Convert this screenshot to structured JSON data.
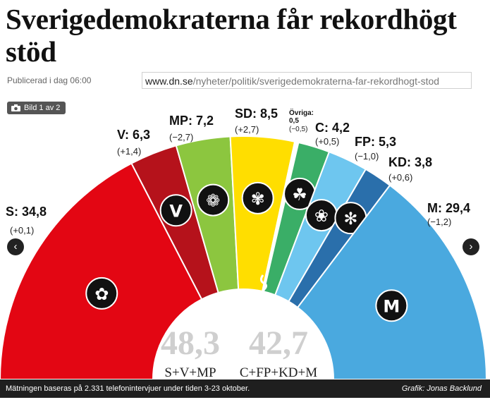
{
  "article": {
    "headline": "Sverigedemokraterna får rekordhögt stöd",
    "published": "Publicerad i dag 06:00",
    "url_domain": "www.dn.se",
    "url_path": "/nyheter/politik/sverigedemokraterna-far-rekordhogt-stod"
  },
  "gallery": {
    "badge": "Bild 1 av 2",
    "prev": "‹",
    "next": "›"
  },
  "chart_data": {
    "type": "pie",
    "title": "Sverigedemokraterna får rekordhögt stöd",
    "unit": "percent",
    "parties": [
      {
        "name": "S",
        "value": 34.8,
        "display": "34,8",
        "change": "(+0,1)",
        "color": "#e30613",
        "icon": "rose-icon"
      },
      {
        "name": "V",
        "value": 6.3,
        "display": "6,3",
        "change": "(+1,4)",
        "color": "#b5121b",
        "icon": "v-icon"
      },
      {
        "name": "MP",
        "value": 7.2,
        "display": "7,2",
        "change": "(−2,7)",
        "color": "#8cc63f",
        "icon": "dandelion-icon"
      },
      {
        "name": "SD",
        "value": 8.5,
        "display": "8,5",
        "change": "(+2,7)",
        "color": "#ffde00",
        "icon": "flower-icon"
      },
      {
        "name": "Övriga:",
        "value": 0.5,
        "display": "0,5",
        "change": "(−0,5)",
        "color": "#ffffff",
        "icon": ""
      },
      {
        "name": "C",
        "value": 4.2,
        "display": "4,2",
        "change": "(+0,5)",
        "color": "#3aae67",
        "icon": "clover-icon"
      },
      {
        "name": "FP",
        "value": 5.3,
        "display": "5,3",
        "change": "(−1,0)",
        "color": "#6ec6ef",
        "icon": "cornflower-icon"
      },
      {
        "name": "KD",
        "value": 3.8,
        "display": "3,8",
        "change": "(+0,6)",
        "color": "#2a6fab",
        "icon": "kd-flower-icon"
      },
      {
        "name": "M",
        "value": 29.4,
        "display": "29,4",
        "change": "(−1,2)",
        "color": "#4aa9df",
        "icon": "m-icon"
      }
    ],
    "blocs": [
      {
        "label": "S+V+MP",
        "value": "48,3"
      },
      {
        "label": "C+FP+KD+M",
        "value": "42,7"
      }
    ]
  },
  "footer": {
    "note": "Mätningen baseras på 2.331 telefonintervjuer under tiden 3-23 oktober.",
    "credit": "Grafik: Jonas Backlund"
  }
}
